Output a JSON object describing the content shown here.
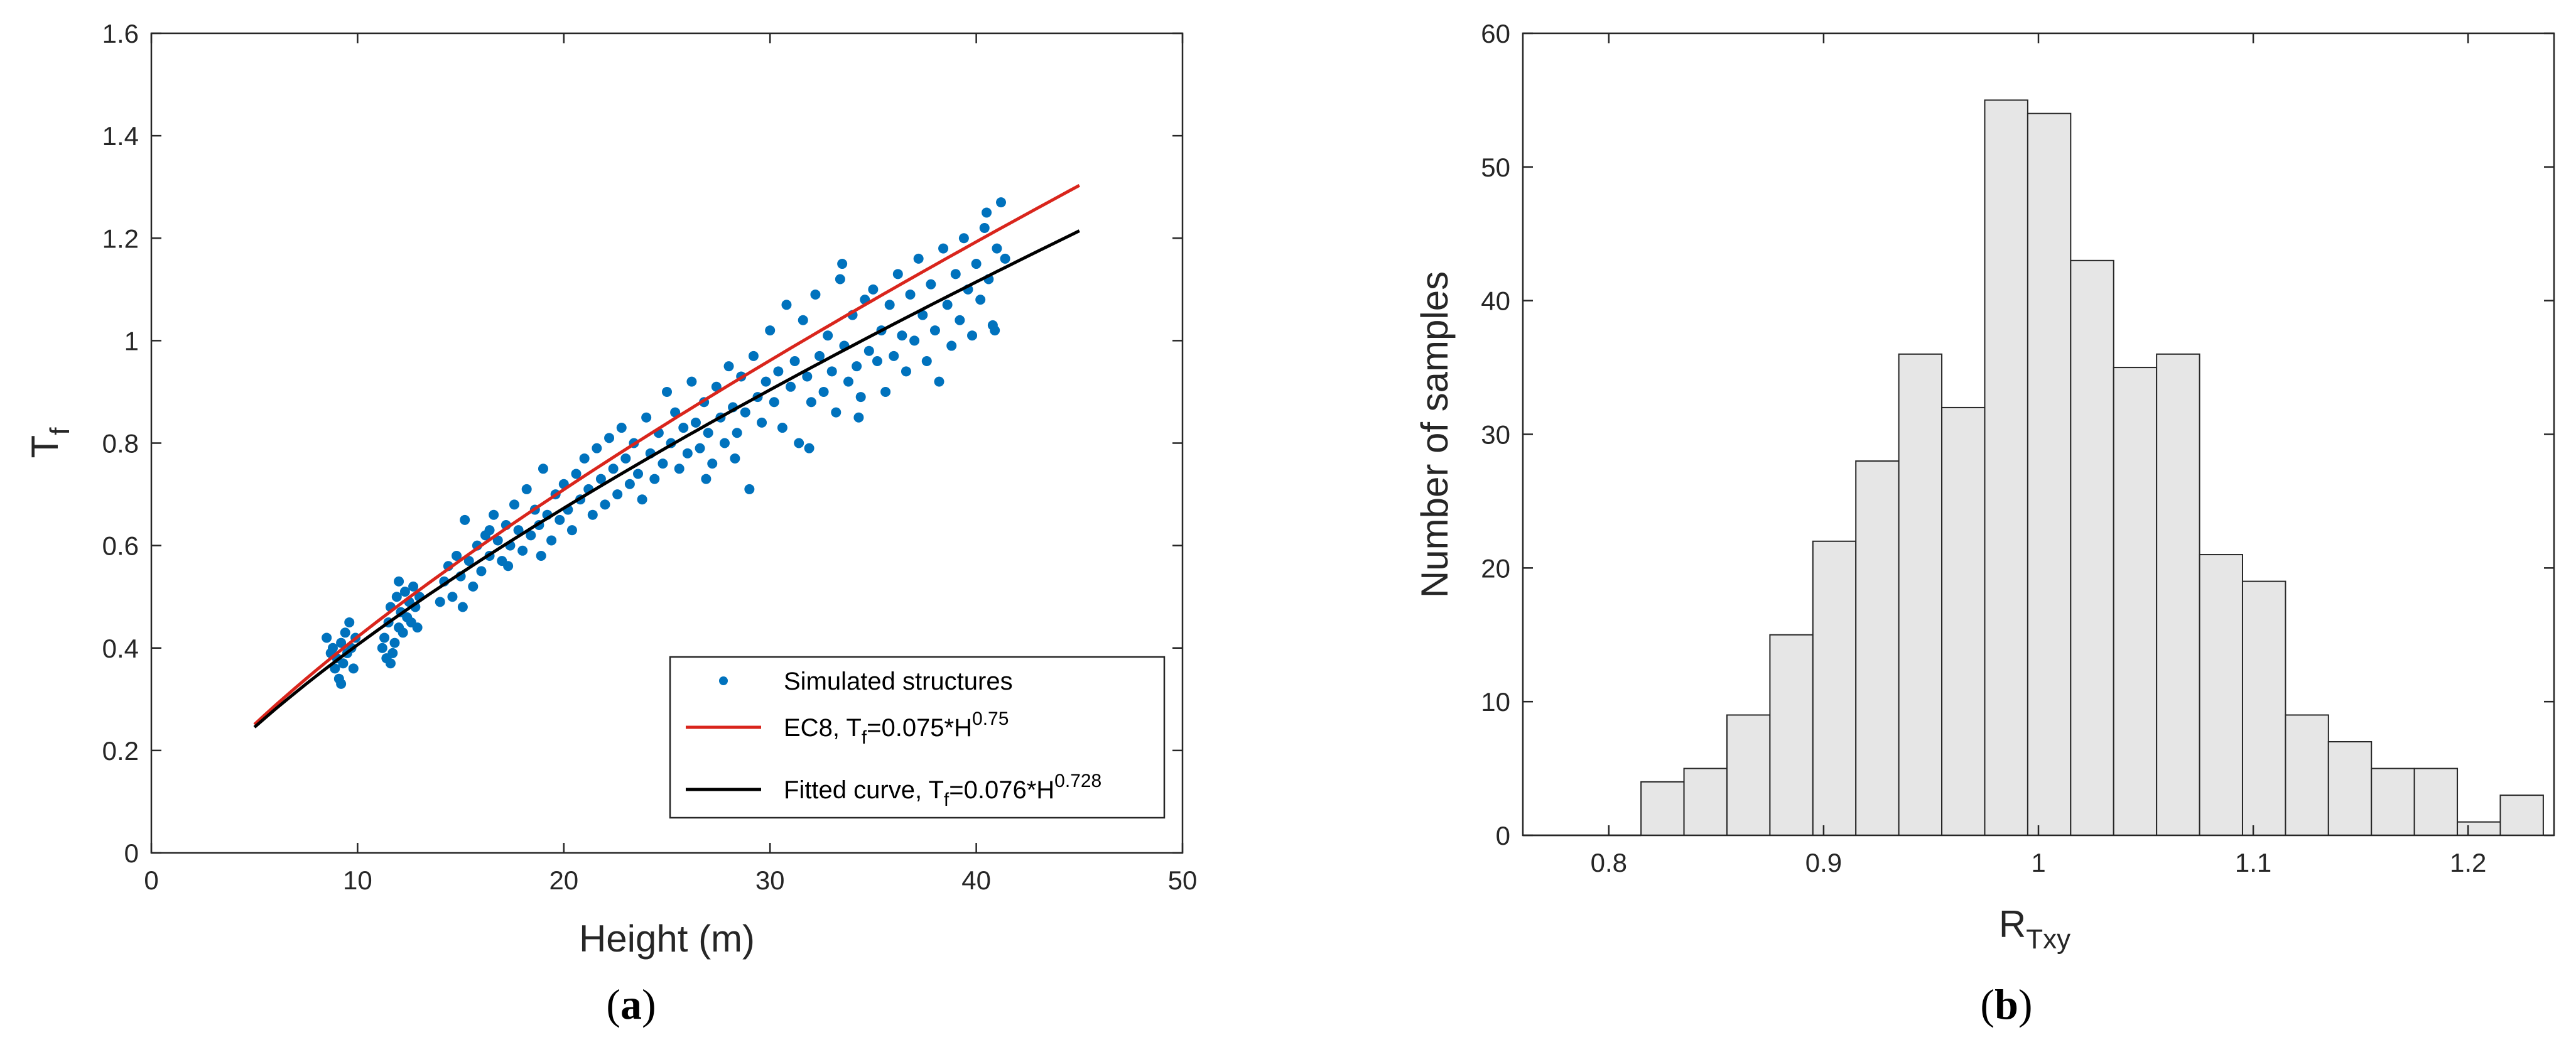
{
  "chart_data": [
    {
      "type": "scatter",
      "panel_label": "a",
      "xlabel": "Height (m)",
      "ylabel": {
        "base": "T",
        "sub": "f"
      },
      "xlim": [
        0,
        50
      ],
      "ylim": [
        0,
        1.6
      ],
      "xticks": [
        0,
        10,
        20,
        30,
        40,
        50
      ],
      "yticks": [
        0,
        0.2,
        0.4,
        0.6,
        0.8,
        1,
        1.2,
        1.4,
        1.6
      ],
      "xtick_labels": [
        "0",
        "10",
        "20",
        "30",
        "40",
        "50"
      ],
      "ytick_labels": [
        "0",
        "0.2",
        "0.4",
        "0.6",
        "0.8",
        "1",
        "1.2",
        "1.4",
        "1.6"
      ],
      "legend_position": "bottom-right",
      "series": [
        {
          "name": "Simulated structures",
          "kind": "points",
          "color": "#0072BD",
          "legend": {
            "text": "Simulated structures"
          },
          "points": [
            [
              8.5,
              0.42
            ],
            [
              8.7,
              0.39
            ],
            [
              8.9,
              0.36
            ],
            [
              9.0,
              0.38
            ],
            [
              9.1,
              0.34
            ],
            [
              9.2,
              0.41
            ],
            [
              9.3,
              0.37
            ],
            [
              9.4,
              0.43
            ],
            [
              9.5,
              0.39
            ],
            [
              9.6,
              0.45
            ],
            [
              9.7,
              0.4
            ],
            [
              9.8,
              0.36
            ],
            [
              9.9,
              0.42
            ],
            [
              9.2,
              0.33
            ],
            [
              8.8,
              0.4
            ],
            [
              11.2,
              0.4
            ],
            [
              11.3,
              0.42
            ],
            [
              11.4,
              0.38
            ],
            [
              11.5,
              0.45
            ],
            [
              11.6,
              0.48
            ],
            [
              11.7,
              0.39
            ],
            [
              11.8,
              0.41
            ],
            [
              11.9,
              0.5
            ],
            [
              12.0,
              0.44
            ],
            [
              12.1,
              0.47
            ],
            [
              12.2,
              0.43
            ],
            [
              12.3,
              0.51
            ],
            [
              12.4,
              0.46
            ],
            [
              12.5,
              0.49
            ],
            [
              12.6,
              0.45
            ],
            [
              12.7,
              0.52
            ],
            [
              12.8,
              0.48
            ],
            [
              12.9,
              0.44
            ],
            [
              13.0,
              0.5
            ],
            [
              11.6,
              0.37
            ],
            [
              12.0,
              0.53
            ],
            [
              14.0,
              0.49
            ],
            [
              14.2,
              0.53
            ],
            [
              14.4,
              0.56
            ],
            [
              14.6,
              0.5
            ],
            [
              14.8,
              0.58
            ],
            [
              15.0,
              0.54
            ],
            [
              15.2,
              0.65
            ],
            [
              15.4,
              0.57
            ],
            [
              15.6,
              0.52
            ],
            [
              15.8,
              0.6
            ],
            [
              16.0,
              0.55
            ],
            [
              16.2,
              0.62
            ],
            [
              16.4,
              0.58
            ],
            [
              16.6,
              0.66
            ],
            [
              16.8,
              0.61
            ],
            [
              17.0,
              0.57
            ],
            [
              17.2,
              0.64
            ],
            [
              17.4,
              0.6
            ],
            [
              17.6,
              0.68
            ],
            [
              17.8,
              0.63
            ],
            [
              18.0,
              0.59
            ],
            [
              18.2,
              0.71
            ],
            [
              18.4,
              0.62
            ],
            [
              18.6,
              0.67
            ],
            [
              18.8,
              0.64
            ],
            [
              19.0,
              0.75
            ],
            [
              19.2,
              0.66
            ],
            [
              19.4,
              0.61
            ],
            [
              19.6,
              0.7
            ],
            [
              19.8,
              0.65
            ],
            [
              15.1,
              0.48
            ],
            [
              16.4,
              0.63
            ],
            [
              17.3,
              0.56
            ],
            [
              18.9,
              0.58
            ],
            [
              20.0,
              0.72
            ],
            [
              20.2,
              0.67
            ],
            [
              20.4,
              0.63
            ],
            [
              20.6,
              0.74
            ],
            [
              20.8,
              0.69
            ],
            [
              21.0,
              0.77
            ],
            [
              21.2,
              0.71
            ],
            [
              21.4,
              0.66
            ],
            [
              21.6,
              0.79
            ],
            [
              21.8,
              0.73
            ],
            [
              22.0,
              0.68
            ],
            [
              22.2,
              0.81
            ],
            [
              22.4,
              0.75
            ],
            [
              22.6,
              0.7
            ],
            [
              22.8,
              0.83
            ],
            [
              23.0,
              0.77
            ],
            [
              23.2,
              0.72
            ],
            [
              23.4,
              0.8
            ],
            [
              23.6,
              0.74
            ],
            [
              23.8,
              0.69
            ],
            [
              24.0,
              0.85
            ],
            [
              24.2,
              0.78
            ],
            [
              24.4,
              0.73
            ],
            [
              24.6,
              0.82
            ],
            [
              24.8,
              0.76
            ],
            [
              25.0,
              0.9
            ],
            [
              25.2,
              0.8
            ],
            [
              25.4,
              0.86
            ],
            [
              25.6,
              0.75
            ],
            [
              25.8,
              0.83
            ],
            [
              26.0,
              0.78
            ],
            [
              26.2,
              0.92
            ],
            [
              26.4,
              0.84
            ],
            [
              26.6,
              0.79
            ],
            [
              26.8,
              0.88
            ],
            [
              27.0,
              0.82
            ],
            [
              27.2,
              0.76
            ],
            [
              27.4,
              0.91
            ],
            [
              27.6,
              0.85
            ],
            [
              27.8,
              0.8
            ],
            [
              28.0,
              0.95
            ],
            [
              28.2,
              0.87
            ],
            [
              28.4,
              0.82
            ],
            [
              28.6,
              0.93
            ],
            [
              28.8,
              0.86
            ],
            [
              29.0,
              0.71
            ],
            [
              29.2,
              0.97
            ],
            [
              29.4,
              0.89
            ],
            [
              29.6,
              0.84
            ],
            [
              29.8,
              0.92
            ],
            [
              26.9,
              0.73
            ],
            [
              28.3,
              0.77
            ],
            [
              30.0,
              1.02
            ],
            [
              30.2,
              0.88
            ],
            [
              30.4,
              0.94
            ],
            [
              30.6,
              0.83
            ],
            [
              30.8,
              1.07
            ],
            [
              31.0,
              0.91
            ],
            [
              31.2,
              0.96
            ],
            [
              31.4,
              0.8
            ],
            [
              31.6,
              1.04
            ],
            [
              31.8,
              0.93
            ],
            [
              32.0,
              0.88
            ],
            [
              32.2,
              1.09
            ],
            [
              32.4,
              0.97
            ],
            [
              32.6,
              0.9
            ],
            [
              32.8,
              1.01
            ],
            [
              33.0,
              0.94
            ],
            [
              33.2,
              0.86
            ],
            [
              33.4,
              1.12
            ],
            [
              33.6,
              0.99
            ],
            [
              33.8,
              0.92
            ],
            [
              34.0,
              1.05
            ],
            [
              34.2,
              0.95
            ],
            [
              34.4,
              0.89
            ],
            [
              34.6,
              1.08
            ],
            [
              34.8,
              0.98
            ],
            [
              33.5,
              1.15
            ],
            [
              31.9,
              0.79
            ],
            [
              34.3,
              0.85
            ],
            [
              35.0,
              1.1
            ],
            [
              35.2,
              0.96
            ],
            [
              35.4,
              1.02
            ],
            [
              35.6,
              0.9
            ],
            [
              35.8,
              1.07
            ],
            [
              36.0,
              0.97
            ],
            [
              36.2,
              1.13
            ],
            [
              36.4,
              1.01
            ],
            [
              36.6,
              0.94
            ],
            [
              36.8,
              1.09
            ],
            [
              37.0,
              1.0
            ],
            [
              37.2,
              1.16
            ],
            [
              37.4,
              1.05
            ],
            [
              37.6,
              0.96
            ],
            [
              37.8,
              1.11
            ],
            [
              38.0,
              1.02
            ],
            [
              38.2,
              0.92
            ],
            [
              38.4,
              1.18
            ],
            [
              38.6,
              1.07
            ],
            [
              38.8,
              0.99
            ],
            [
              39.0,
              1.13
            ],
            [
              39.2,
              1.04
            ],
            [
              39.4,
              1.2
            ],
            [
              39.6,
              1.1
            ],
            [
              39.8,
              1.01
            ],
            [
              40.0,
              1.15
            ],
            [
              40.2,
              1.08
            ],
            [
              40.4,
              1.22
            ],
            [
              40.6,
              1.12
            ],
            [
              40.8,
              1.03
            ],
            [
              41.0,
              1.18
            ],
            [
              41.2,
              1.27
            ],
            [
              41.4,
              1.16
            ],
            [
              40.5,
              1.25
            ],
            [
              40.9,
              1.02
            ]
          ]
        },
        {
          "name": "EC8",
          "kind": "line",
          "color": "#D9251C",
          "legend": {
            "text": "EC8, T",
            "sub": "f",
            "mid": "=0.075*H",
            "sup": "0.75"
          },
          "coef": 0.075,
          "exp": 0.75,
          "x_range": [
            5,
            45
          ]
        },
        {
          "name": "Fitted curve",
          "kind": "line",
          "color": "#000000",
          "legend": {
            "text": "Fitted curve, T",
            "sub": "f",
            "mid": "=0.076*H",
            "sup": "0.728"
          },
          "coef": 0.076,
          "exp": 0.728,
          "x_range": [
            5,
            45
          ]
        }
      ]
    },
    {
      "type": "bar",
      "subtype": "histogram",
      "panel_label": "b",
      "xlabel": {
        "base": "R",
        "sub": "Txy"
      },
      "ylabel": "Number of samples",
      "xlim": [
        0.76,
        1.24
      ],
      "ylim": [
        0,
        60
      ],
      "xticks": [
        0.8,
        0.9,
        1,
        1.1,
        1.2
      ],
      "yticks": [
        0,
        10,
        20,
        30,
        40,
        50,
        60
      ],
      "xtick_labels": [
        "0.8",
        "0.9",
        "1",
        "1.1",
        "1.2"
      ],
      "ytick_labels": [
        "0",
        "10",
        "20",
        "30",
        "40",
        "50",
        "60"
      ],
      "bar_color": "#E6E6E6",
      "bin_width": 0.02,
      "bin_starts": [
        0.815,
        0.835,
        0.855,
        0.875,
        0.895,
        0.915,
        0.935,
        0.955,
        0.975,
        0.995,
        1.015,
        1.035,
        1.055,
        1.075,
        1.095,
        1.115,
        1.135,
        1.155,
        1.175,
        1.195,
        1.215
      ],
      "values": [
        4,
        5,
        9,
        15,
        22,
        28,
        36,
        32,
        55,
        54,
        43,
        35,
        36,
        21,
        19,
        9,
        7,
        5,
        5,
        1,
        3
      ]
    }
  ]
}
